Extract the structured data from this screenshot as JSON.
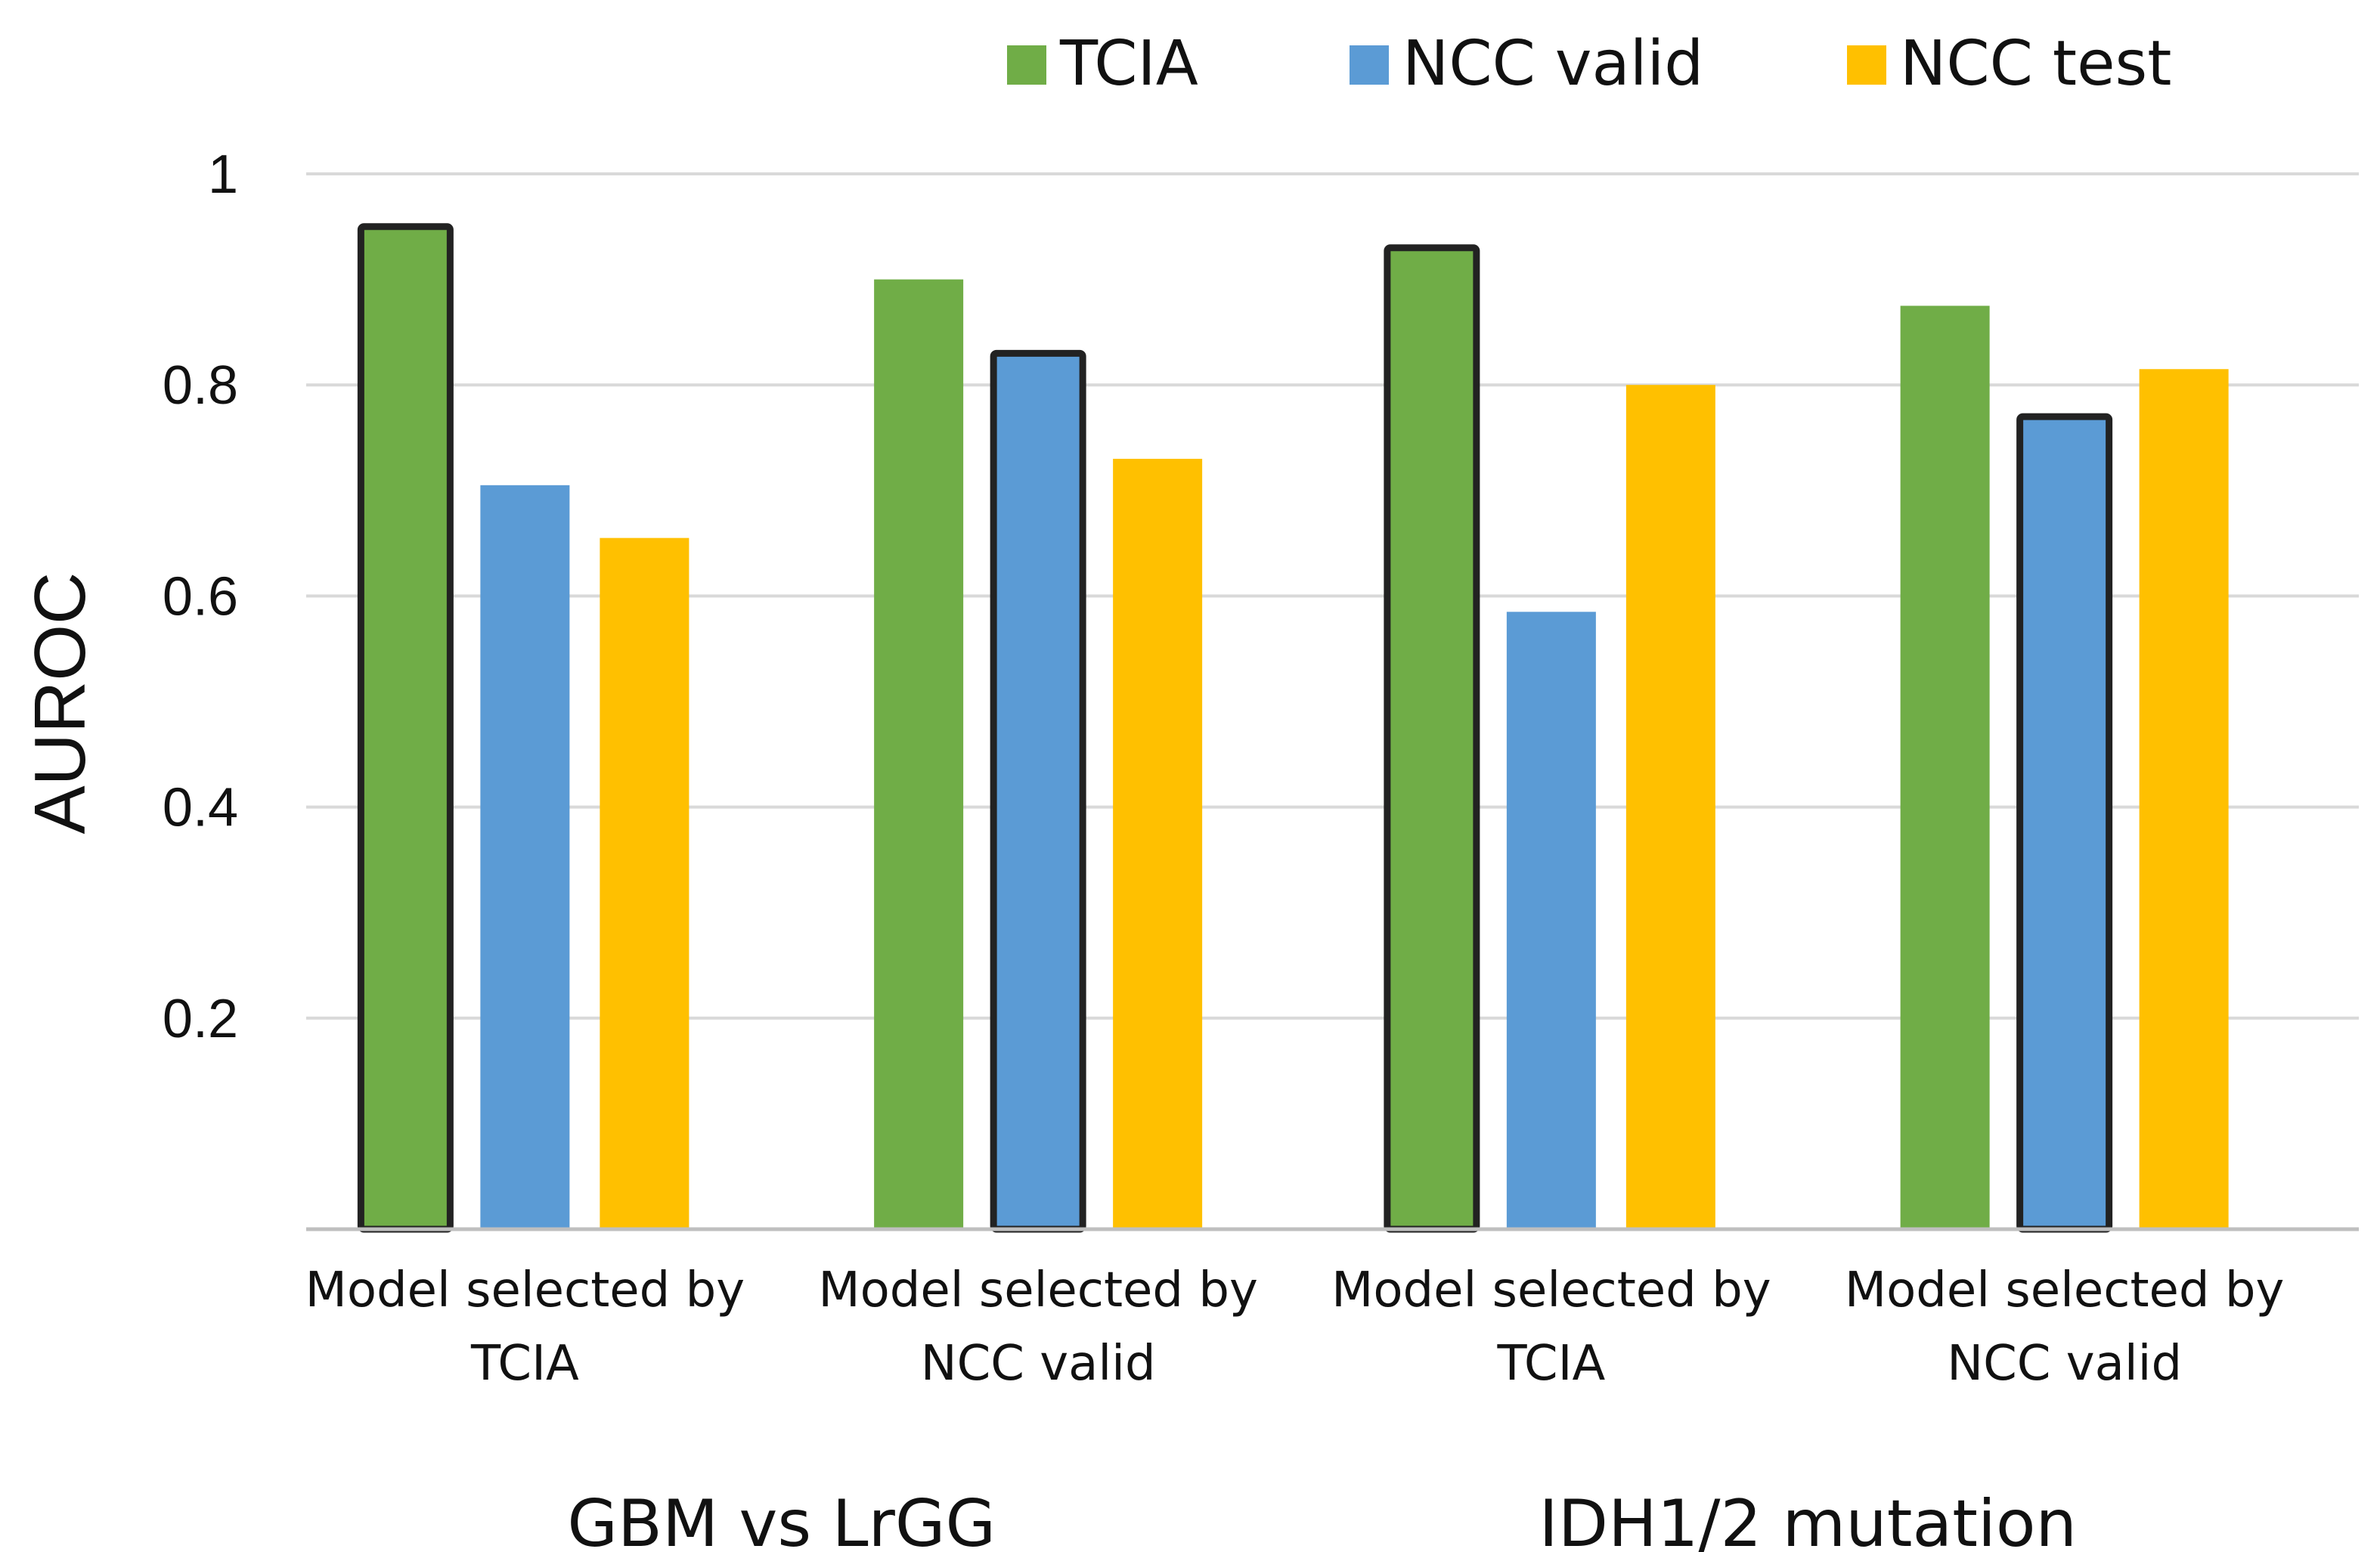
{
  "chart_data": {
    "type": "bar",
    "title": "",
    "xlabel": "",
    "ylabel": "AUROC",
    "ylim": [
      0,
      1
    ],
    "yticks": [
      0.2,
      0.4,
      0.6,
      0.8,
      1
    ],
    "ytick_labels": [
      "0.2",
      "0.4",
      "0.6",
      "0.8",
      "1"
    ],
    "grid": true,
    "legend_position": "top",
    "groups": [
      "GBM vs LrGG",
      "IDH1/2 mutation"
    ],
    "categories": [
      {
        "line1": "Model selected by",
        "line2": "TCIA"
      },
      {
        "line1": "Model selected by",
        "line2": "NCC valid"
      },
      {
        "line1": "Model selected by",
        "line2": "TCIA"
      },
      {
        "line1": "Model selected by",
        "line2": "NCC valid"
      }
    ],
    "series": [
      {
        "name": "TCIA",
        "color": "#70AD47",
        "values": [
          0.95,
          0.9,
          0.93,
          0.875
        ],
        "outlined": [
          true,
          false,
          true,
          false
        ]
      },
      {
        "name": "NCC valid",
        "color": "#5B9BD5",
        "values": [
          0.705,
          0.83,
          0.585,
          0.77
        ],
        "outlined": [
          false,
          true,
          false,
          true
        ]
      },
      {
        "name": "NCC test",
        "color": "#FFC000",
        "values": [
          0.655,
          0.73,
          0.8,
          0.815
        ],
        "outlined": [
          false,
          false,
          false,
          false
        ]
      }
    ]
  }
}
